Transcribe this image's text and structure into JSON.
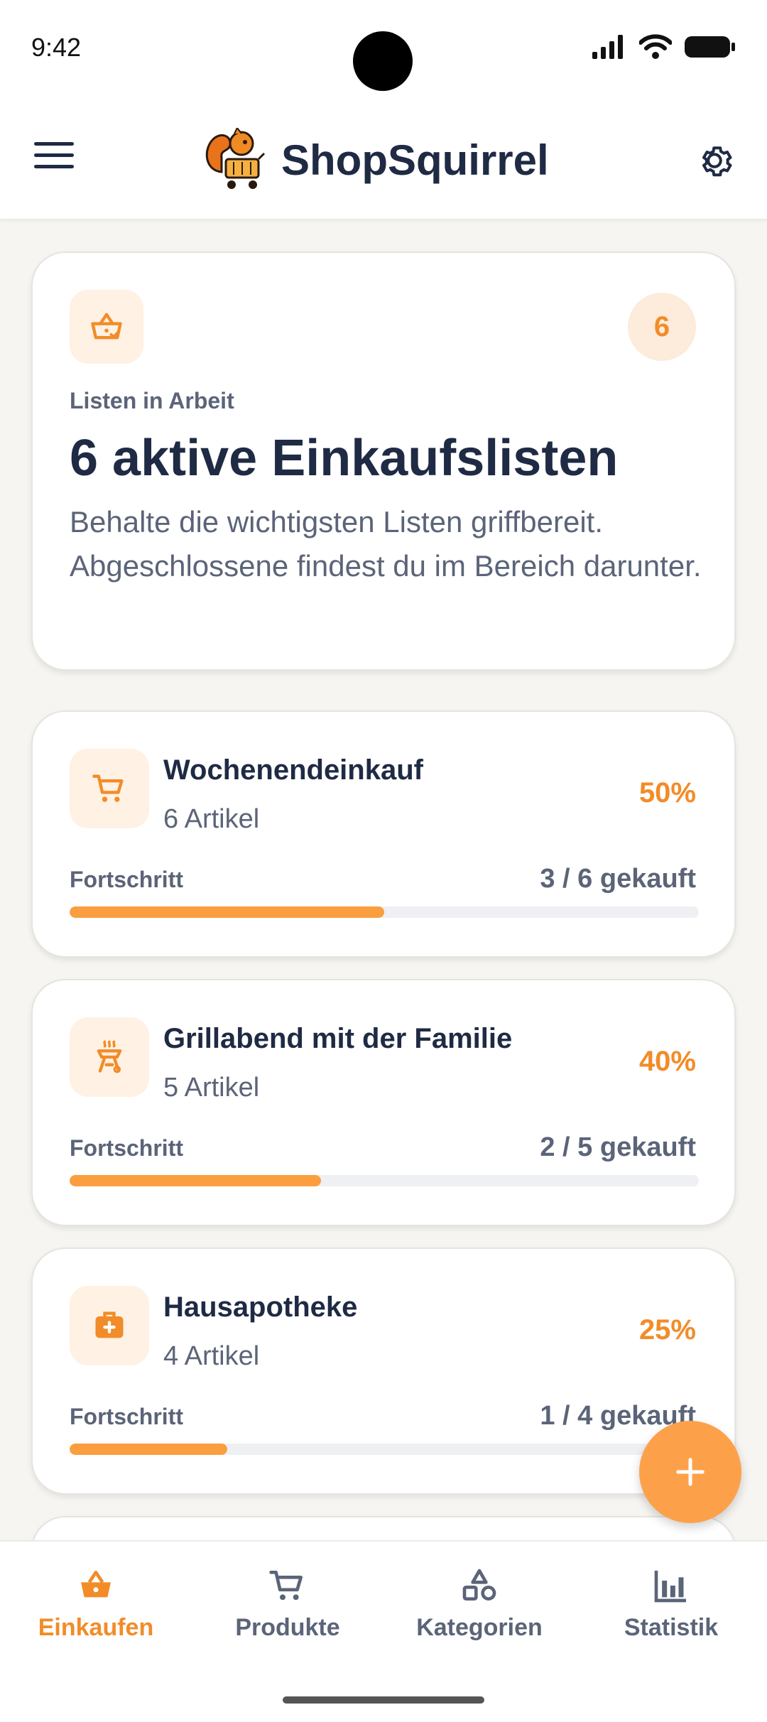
{
  "status_bar": {
    "time": "9:42"
  },
  "app_bar": {
    "title": "ShopSquirrel"
  },
  "summary": {
    "badge_count": "6",
    "label": "Listen in Arbeit",
    "title": "6 aktive Einkaufslisten",
    "description": "Behalte die wichtigsten Listen griffbereit. Abgeschlossene findest du im Bereich darunter."
  },
  "lists": [
    {
      "name": "Wochenendeinkauf",
      "count": "6 Artikel",
      "percent": "50%",
      "progress_label": "Fortschritt",
      "progress_count": "3 / 6 gekauft",
      "progress": 0.5,
      "icon": "cart-icon"
    },
    {
      "name": "Grillabend mit der Familie",
      "count": "5 Artikel",
      "percent": "40%",
      "progress_label": "Fortschritt",
      "progress_count": "2 / 5 gekauft",
      "progress": 0.4,
      "icon": "grill-icon"
    },
    {
      "name": "Hausapotheke",
      "count": "4 Artikel",
      "percent": "25%",
      "progress_label": "Fortschritt",
      "progress_count": "1 / 4 gekauft",
      "progress": 0.25,
      "icon": "medical-kit-icon"
    }
  ],
  "bottom_nav": [
    {
      "label": "Einkaufen",
      "icon": "basket-icon",
      "active": true
    },
    {
      "label": "Produkte",
      "icon": "cart-icon",
      "active": false
    },
    {
      "label": "Kategorien",
      "icon": "shapes-icon",
      "active": false
    },
    {
      "label": "Statistik",
      "icon": "bar-chart-icon",
      "active": false
    }
  ],
  "colors": {
    "accent": "#F28C28",
    "progress_fill": "#FA9E3F",
    "text_dark": "#1F2A44",
    "text_muted": "#5B6478",
    "background": "#F6F5F1"
  }
}
